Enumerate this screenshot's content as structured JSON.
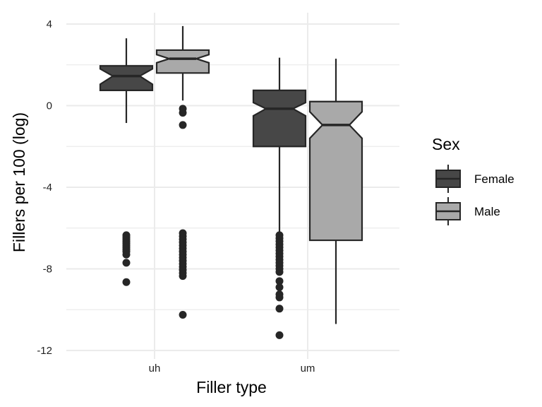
{
  "chart_data": {
    "type": "boxplot",
    "xlabel": "Filler type",
    "ylabel": "Fillers per 100 (log)",
    "categories": [
      "uh",
      "um"
    ],
    "ylim": [
      -12,
      4
    ],
    "yticks": [
      4,
      0,
      -4,
      -8,
      -12
    ],
    "ytick_labels": [
      "4",
      "0",
      "-4",
      "-8",
      "-12"
    ],
    "notched": true,
    "grid": true,
    "legend": {
      "title": "Sex",
      "placement": "right",
      "entries": [
        "Female",
        "Male"
      ]
    },
    "series": [
      {
        "name": "Female",
        "color": "#474747",
        "boxes": [
          {
            "category": "uh",
            "min": -0.85,
            "q1": 0.75,
            "notch_low": 1.05,
            "median": 1.45,
            "notch_high": 1.8,
            "q3": 1.95,
            "max": 3.3,
            "outliers": [
              -6.35,
              -6.45,
              -6.55,
              -6.65,
              -6.75,
              -6.85,
              -6.95,
              -7.05,
              -7.15,
              -7.3,
              -7.7,
              -8.65
            ]
          },
          {
            "category": "um",
            "min": -6.3,
            "q1": -2.0,
            "notch_low": -0.5,
            "median": -0.15,
            "notch_high": 0.15,
            "q3": 0.75,
            "max": 2.35,
            "outliers": [
              -6.35,
              -6.5,
              -6.65,
              -6.8,
              -6.95,
              -7.1,
              -7.25,
              -7.4,
              -7.55,
              -7.7,
              -7.85,
              -8.0,
              -8.15,
              -8.6,
              -8.9,
              -9.25,
              -9.4,
              -9.95,
              -11.25
            ]
          }
        ]
      },
      {
        "name": "Male",
        "color": "#a9a9a9",
        "boxes": [
          {
            "category": "uh",
            "min": 0.25,
            "q1": 1.6,
            "notch_low": 2.1,
            "median": 2.3,
            "notch_high": 2.5,
            "q3": 2.72,
            "max": 3.9,
            "outliers": [
              -0.15,
              -0.35,
              -0.95,
              -6.25,
              -6.4,
              -6.55,
              -6.7,
              -6.85,
              -7.0,
              -7.15,
              -7.3,
              -7.45,
              -7.6,
              -7.75,
              -7.9,
              -8.05,
              -8.2,
              -8.35,
              -10.25
            ]
          },
          {
            "category": "um",
            "min": -10.7,
            "q1": -6.6,
            "notch_low": -1.6,
            "median": -0.95,
            "notch_high": -0.3,
            "q3": 0.2,
            "max": 2.3,
            "outliers": []
          }
        ]
      }
    ]
  }
}
